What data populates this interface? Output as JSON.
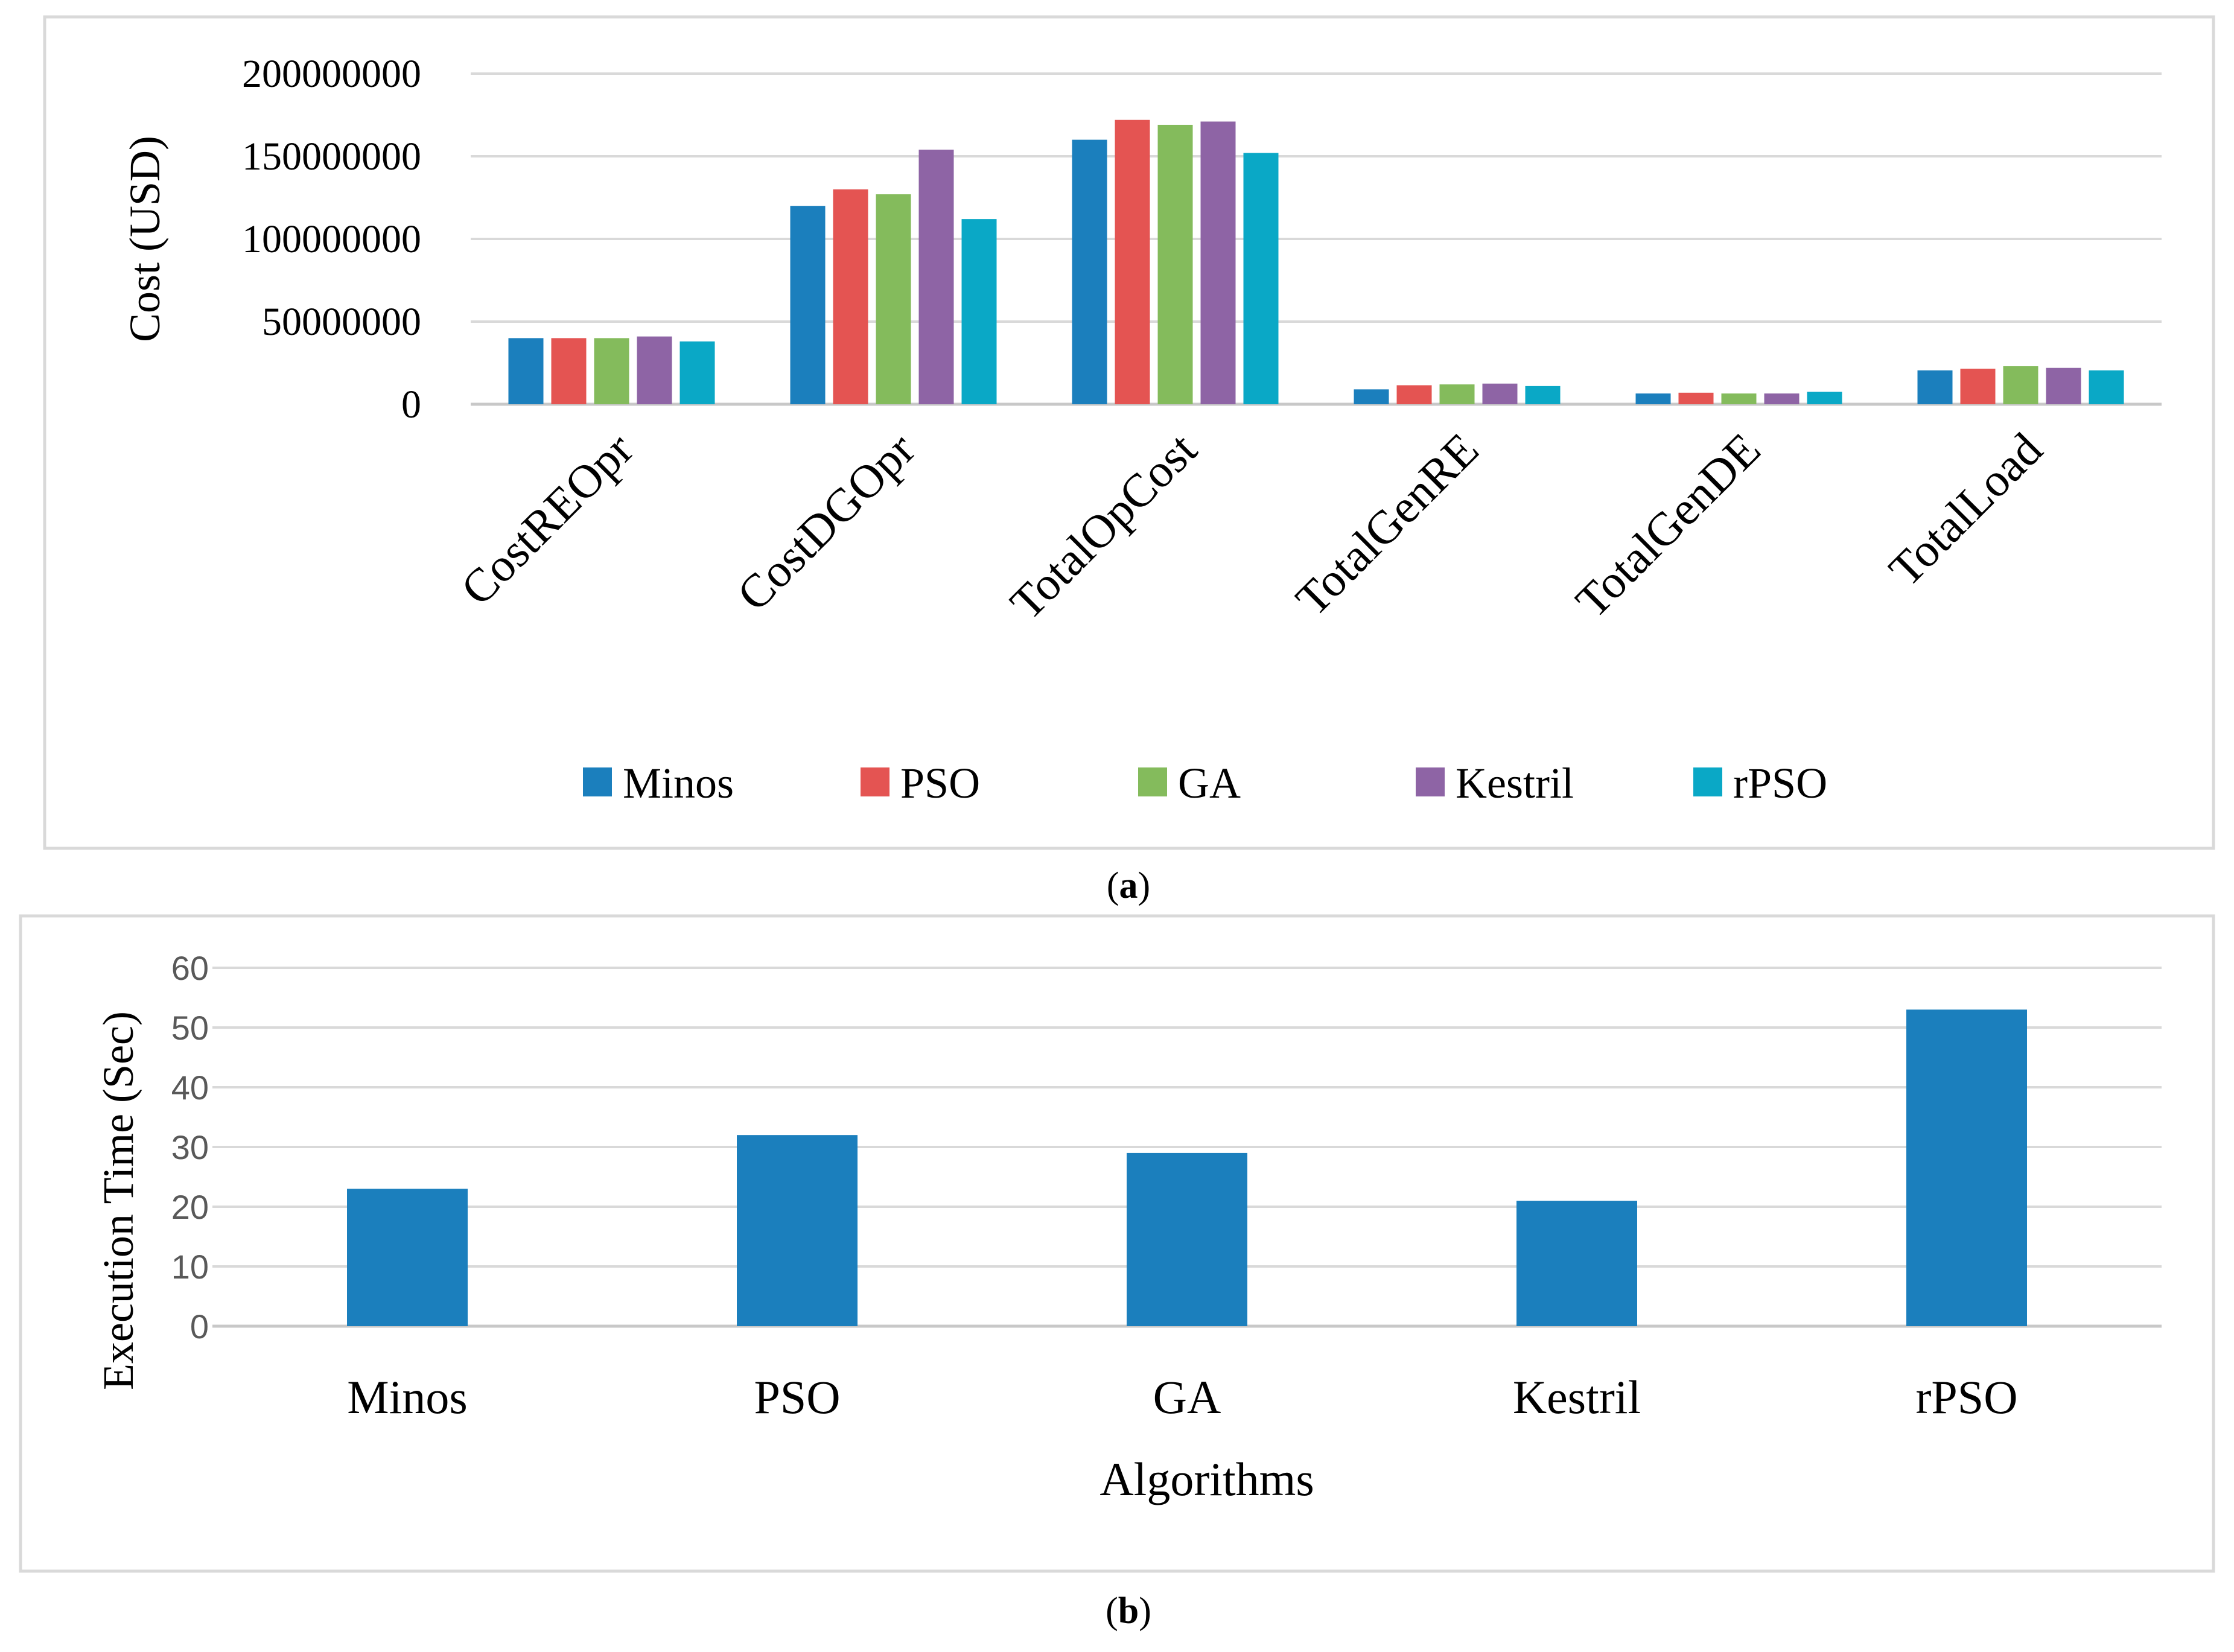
{
  "panel_labels": {
    "a": "a",
    "b": "b"
  },
  "chart_data": [
    {
      "type": "bar",
      "panel": "a",
      "title": "",
      "xlabel": "",
      "ylabel": "Cost (USD)",
      "ylim": [
        0,
        200000000
      ],
      "yticks": [
        0,
        50000000,
        100000000,
        150000000,
        200000000
      ],
      "ytick_labels": [
        "0",
        "50000000",
        "100000000",
        "150000000",
        "200000000"
      ],
      "grid": "horizontal",
      "legend": "bottom",
      "categories": [
        "CostREOpr",
        "CostDGOpr",
        "TotalOpCost",
        "TotalGenRE",
        "TotalGenDE",
        "TotalLoad"
      ],
      "colors": [
        "#1b7fbd",
        "#e45452",
        "#84bb5c",
        "#8e64a5",
        "#0aa8c6"
      ],
      "series": [
        {
          "name": "Minos",
          "values": [
            40000000,
            120000000,
            160000000,
            9000000,
            6500000,
            20500000
          ]
        },
        {
          "name": "PSO",
          "values": [
            40000000,
            130000000,
            172000000,
            11500000,
            7000000,
            21500000
          ]
        },
        {
          "name": "GA",
          "values": [
            40000000,
            127000000,
            169000000,
            12000000,
            6500000,
            23000000
          ]
        },
        {
          "name": "Kestril",
          "values": [
            41000000,
            154000000,
            171000000,
            12500000,
            6500000,
            22000000
          ]
        },
        {
          "name": "rPSO",
          "values": [
            38000000,
            112000000,
            152000000,
            11000000,
            7500000,
            20500000
          ]
        }
      ]
    },
    {
      "type": "bar",
      "panel": "b",
      "title": "",
      "xlabel": "Algorithms",
      "ylabel": "Execution Time (Sec)",
      "ylim": [
        0,
        60
      ],
      "yticks": [
        0,
        10,
        20,
        30,
        40,
        50,
        60
      ],
      "ytick_labels": [
        "0",
        "10",
        "20",
        "30",
        "40",
        "50",
        "60"
      ],
      "grid": "horizontal",
      "legend": "none",
      "categories": [
        "Minos",
        "PSO",
        "GA",
        "Kestril",
        "rPSO"
      ],
      "color": "#1b7fbd",
      "values": [
        23,
        32,
        29,
        21,
        53
      ]
    }
  ]
}
